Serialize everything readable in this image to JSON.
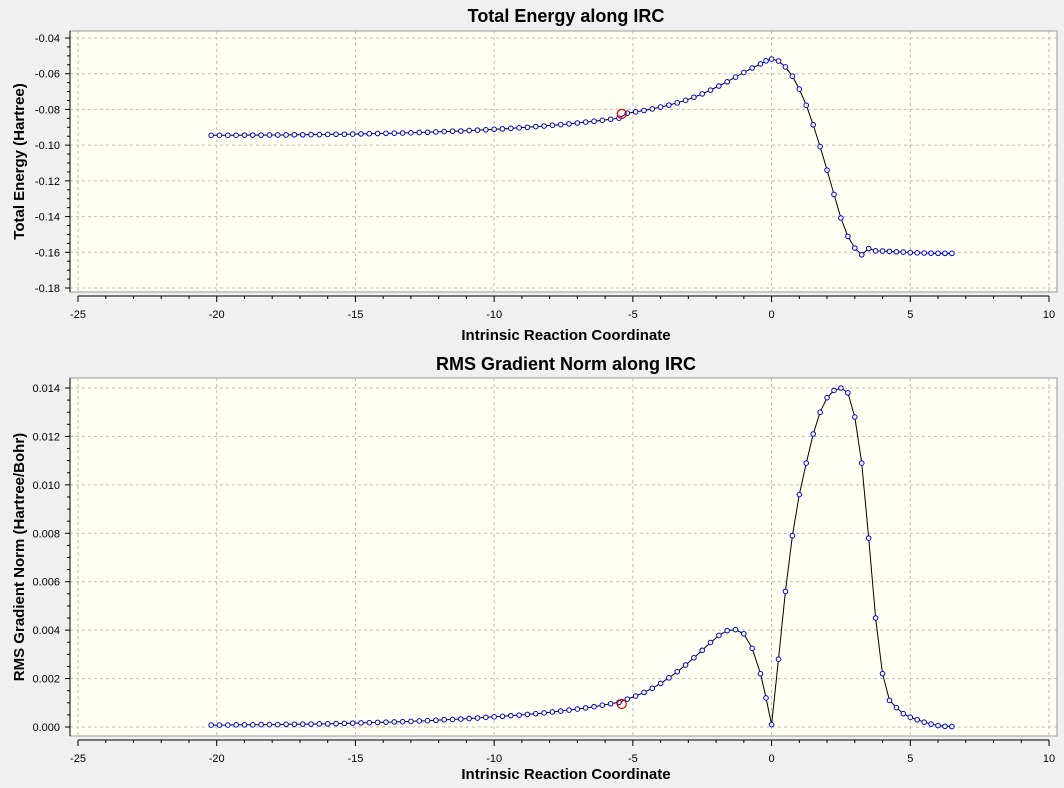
{
  "window": {
    "background_color": "#f0f0f0"
  },
  "colors": {
    "plot_bg": "#fffff3",
    "point": "#0000dd",
    "marker": "#dd0000",
    "curve": "#000000"
  },
  "chart_data": [
    {
      "type": "line",
      "title": "Total Energy along IRC",
      "xlabel": "Intrinsic Reaction Coordinate",
      "ylabel": "Total Energy (Hartree)",
      "xlim": [
        -25,
        10
      ],
      "ylim": [
        -0.18,
        -0.04
      ],
      "xticks": [
        -25,
        -20,
        -15,
        -10,
        -5,
        0,
        5,
        10
      ],
      "yticks": [
        -0.18,
        -0.16,
        -0.14,
        -0.12,
        -0.1,
        -0.08,
        -0.06,
        -0.04
      ],
      "xtick_labels": [
        "-25",
        "-20",
        "-15",
        "-10",
        "-5",
        "0",
        "5",
        "10"
      ],
      "ytick_labels": [
        "-0.18",
        "-0.16",
        "-0.14",
        "-0.12",
        "-0.10",
        "-0.08",
        "-0.06",
        "-0.04"
      ],
      "grid": true,
      "highlighted_point": {
        "x": -5.4,
        "y": -0.0825
      },
      "series": [
        {
          "x": [
            -20.2,
            -19.9,
            -19.6,
            -19.3,
            -19,
            -18.7,
            -18.4,
            -18.1,
            -17.8,
            -17.5,
            -17.2,
            -16.9,
            -16.6,
            -16.3,
            -16,
            -15.7,
            -15.4,
            -15.1,
            -14.8,
            -14.5,
            -14.2,
            -13.9,
            -13.6,
            -13.3,
            -13,
            -12.7,
            -12.4,
            -12.1,
            -11.8,
            -11.5,
            -11.2,
            -10.9,
            -10.6,
            -10.3,
            -10,
            -9.7,
            -9.4,
            -9.1,
            -8.8,
            -8.5,
            -8.2,
            -7.9,
            -7.6,
            -7.3,
            -7,
            -6.7,
            -6.4,
            -6.1,
            -5.8,
            -5.5,
            -5.2,
            -4.9,
            -4.6,
            -4.3,
            -4,
            -3.7,
            -3.4,
            -3.1,
            -2.8,
            -2.5,
            -2.2,
            -1.9,
            -1.6,
            -1.3,
            -1,
            -0.7,
            -0.4,
            -0.2,
            0,
            0.25,
            0.5,
            0.75,
            1,
            1.25,
            1.5,
            1.75,
            2,
            2.25,
            2.5,
            2.75,
            3,
            3.25,
            3.5,
            3.75,
            4,
            4.25,
            4.5,
            4.75,
            5,
            5.25,
            5.5,
            5.75,
            6,
            6.25,
            6.5
          ],
          "y": [
            -0.0945,
            -0.0945,
            -0.0945,
            -0.0945,
            -0.0944,
            -0.0944,
            -0.0944,
            -0.0943,
            -0.0943,
            -0.0943,
            -0.0942,
            -0.0942,
            -0.0941,
            -0.0941,
            -0.094,
            -0.0939,
            -0.0939,
            -0.0938,
            -0.0937,
            -0.0936,
            -0.0935,
            -0.0934,
            -0.0933,
            -0.0932,
            -0.0931,
            -0.0929,
            -0.0928,
            -0.0926,
            -0.0924,
            -0.0922,
            -0.0921,
            -0.0918,
            -0.0916,
            -0.0914,
            -0.0911,
            -0.0909,
            -0.0906,
            -0.0903,
            -0.09,
            -0.0896,
            -0.0893,
            -0.0889,
            -0.0885,
            -0.0881,
            -0.0876,
            -0.0871,
            -0.0866,
            -0.0861,
            -0.0855,
            -0.0849,
            -0.0821,
            -0.0814,
            -0.0806,
            -0.0797,
            -0.0787,
            -0.0776,
            -0.0763,
            -0.0749,
            -0.0732,
            -0.0713,
            -0.0692,
            -0.0669,
            -0.0645,
            -0.0619,
            -0.0593,
            -0.0568,
            -0.0545,
            -0.0528,
            -0.0518,
            -0.0529,
            -0.0562,
            -0.0614,
            -0.0686,
            -0.0777,
            -0.0886,
            -0.1008,
            -0.114,
            -0.1276,
            -0.1408,
            -0.1511,
            -0.1576,
            -0.1614,
            -0.1579,
            -0.1592,
            -0.1593,
            -0.1595,
            -0.1597,
            -0.1599,
            -0.1602,
            -0.1603,
            -0.1604,
            -0.1605,
            -0.1606,
            -0.1606,
            -0.1606
          ]
        }
      ]
    },
    {
      "type": "line",
      "title": "RMS Gradient Norm along IRC",
      "xlabel": "Intrinsic Reaction Coordinate",
      "ylabel": "RMS Gradient Norm (Hartree/Bohr)",
      "xlim": [
        -25,
        10
      ],
      "ylim": [
        0,
        0.014
      ],
      "xticks": [
        -25,
        -20,
        -15,
        -10,
        -5,
        0,
        5,
        10
      ],
      "yticks": [
        0,
        0.002,
        0.004,
        0.006,
        0.008,
        0.01,
        0.012,
        0.014
      ],
      "xtick_labels": [
        "-25",
        "-20",
        "-15",
        "-10",
        "-5",
        "0",
        "5",
        "10"
      ],
      "ytick_labels": [
        "0.000",
        "0.002",
        "0.004",
        "0.006",
        "0.008",
        "0.010",
        "0.012",
        "0.014"
      ],
      "grid": true,
      "highlighted_point": {
        "x": -5.4,
        "y": 0.00095
      },
      "series": [
        {
          "x": [
            -20.2,
            -19.9,
            -19.6,
            -19.3,
            -19,
            -18.7,
            -18.4,
            -18.1,
            -17.8,
            -17.5,
            -17.2,
            -16.9,
            -16.6,
            -16.3,
            -16,
            -15.7,
            -15.4,
            -15.1,
            -14.8,
            -14.5,
            -14.2,
            -13.9,
            -13.6,
            -13.3,
            -13,
            -12.7,
            -12.4,
            -12.1,
            -11.8,
            -11.5,
            -11.2,
            -10.9,
            -10.6,
            -10.3,
            -10,
            -9.7,
            -9.4,
            -9.1,
            -8.8,
            -8.5,
            -8.2,
            -7.9,
            -7.6,
            -7.3,
            -7,
            -6.7,
            -6.4,
            -6.1,
            -5.8,
            -5.5,
            -5.2,
            -4.9,
            -4.6,
            -4.3,
            -4,
            -3.7,
            -3.4,
            -3.1,
            -2.8,
            -2.5,
            -2.2,
            -1.9,
            -1.6,
            -1.3,
            -1,
            -0.7,
            -0.4,
            -0.2,
            0,
            0.25,
            0.5,
            0.75,
            1,
            1.25,
            1.5,
            1.75,
            2,
            2.25,
            2.5,
            2.75,
            3,
            3.25,
            3.5,
            3.75,
            4,
            4.25,
            4.5,
            4.75,
            5,
            5.25,
            5.5,
            5.75,
            6,
            6.25,
            6.5
          ],
          "y": [
            8e-05,
            8e-05,
            8e-05,
            9e-05,
            9e-05,
            9e-05,
            0.0001,
            0.0001,
            0.0001,
            0.00011,
            0.00011,
            0.00012,
            0.00012,
            0.00013,
            0.00013,
            0.00014,
            0.00015,
            0.00016,
            0.00017,
            0.00018,
            0.00019,
            0.0002,
            0.00021,
            0.00022,
            0.00023,
            0.00025,
            0.00026,
            0.00028,
            0.0003,
            0.00031,
            0.00033,
            0.00035,
            0.00037,
            0.0004,
            0.00042,
            0.00044,
            0.00047,
            0.00049,
            0.00052,
            0.00055,
            0.00058,
            0.00062,
            0.00066,
            0.0007,
            0.00074,
            0.00079,
            0.00084,
            0.0009,
            0.00096,
            0.00102,
            0.00115,
            0.00128,
            0.00143,
            0.0016,
            0.0018,
            0.00203,
            0.00228,
            0.00256,
            0.00286,
            0.00317,
            0.00349,
            0.00378,
            0.00398,
            0.00402,
            0.00385,
            0.00325,
            0.0022,
            0.0012,
            0.0001,
            0.0028,
            0.0056,
            0.0079,
            0.0096,
            0.0109,
            0.0121,
            0.013,
            0.0136,
            0.0139,
            0.014,
            0.0138,
            0.0128,
            0.0109,
            0.0078,
            0.0045,
            0.0022,
            0.0011,
            0.0008,
            0.00055,
            0.0004,
            0.0003,
            0.0002,
            0.00012,
            6e-05,
            3e-05,
            2e-05
          ]
        }
      ]
    }
  ]
}
